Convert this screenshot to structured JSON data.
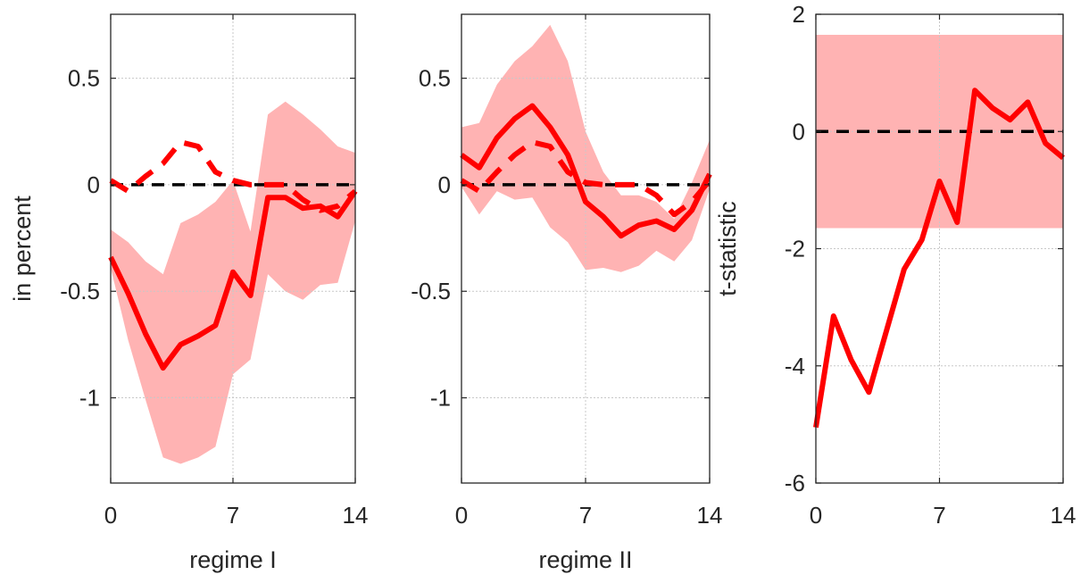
{
  "chart_data": [
    {
      "type": "line",
      "xlabel": "regime I",
      "ylabel": "in percent",
      "xlim": [
        0,
        14
      ],
      "ylim": [
        -1.4,
        0.8
      ],
      "xticks": [
        0,
        7,
        14
      ],
      "xtick_labels": [
        "0",
        "7",
        "14"
      ],
      "yticks": [
        0.5,
        0,
        -0.5,
        -1
      ],
      "ytick_labels": [
        "0.5",
        "0",
        "-0.5",
        "-1"
      ],
      "grid": true,
      "zero_line": 0,
      "colors": {
        "series": "#ff0000",
        "band": "#ffb3b3",
        "zero_line": "#000000"
      },
      "x": [
        0,
        1,
        2,
        3,
        4,
        5,
        6,
        7,
        8,
        9,
        10,
        11,
        12,
        13,
        14
      ],
      "band": {
        "upper": [
          -0.21,
          -0.27,
          -0.36,
          -0.42,
          -0.18,
          -0.14,
          -0.08,
          0.02,
          -0.22,
          0.33,
          0.39,
          0.33,
          0.26,
          0.18,
          0.15
        ],
        "lower": [
          -0.39,
          -0.73,
          -1.01,
          -1.28,
          -1.31,
          -1.28,
          -1.23,
          -0.89,
          -0.82,
          -0.42,
          -0.5,
          -0.54,
          -0.47,
          -0.46,
          -0.17
        ]
      },
      "series": [
        {
          "style": "solid",
          "values": [
            -0.34,
            -0.51,
            -0.7,
            -0.86,
            -0.75,
            -0.71,
            -0.66,
            -0.41,
            -0.52,
            -0.06,
            -0.06,
            -0.11,
            -0.1,
            -0.15,
            -0.03
          ]
        },
        {
          "style": "dashed",
          "values": [
            0.02,
            -0.03,
            0.04,
            0.1,
            0.2,
            0.18,
            0.06,
            0.02,
            0.0,
            0.0,
            0.0,
            -0.07,
            -0.12,
            -0.1,
            -0.03
          ]
        }
      ]
    },
    {
      "type": "line",
      "xlabel": "regime II",
      "ylabel": "",
      "xlim": [
        0,
        14
      ],
      "ylim": [
        -1.4,
        0.8
      ],
      "xticks": [
        0,
        7,
        14
      ],
      "xtick_labels": [
        "0",
        "7",
        "14"
      ],
      "yticks": [
        0.5,
        0,
        -0.5,
        -1
      ],
      "ytick_labels": [
        "0.5",
        "0",
        "-0.5",
        "-1"
      ],
      "grid": true,
      "zero_line": 0,
      "colors": {
        "series": "#ff0000",
        "band": "#ffb3b3",
        "zero_line": "#000000"
      },
      "x": [
        0,
        1,
        2,
        3,
        4,
        5,
        6,
        7,
        8,
        9,
        10,
        11,
        12,
        13,
        14
      ],
      "band": {
        "upper": [
          0.27,
          0.29,
          0.47,
          0.58,
          0.65,
          0.75,
          0.58,
          0.25,
          0.06,
          -0.05,
          -0.05,
          -0.08,
          -0.16,
          0.01,
          0.21
        ],
        "lower": [
          -0.01,
          -0.14,
          -0.03,
          -0.07,
          -0.06,
          -0.2,
          -0.27,
          -0.4,
          -0.39,
          -0.41,
          -0.38,
          -0.31,
          -0.36,
          -0.26,
          -0.02
        ]
      },
      "series": [
        {
          "style": "solid",
          "values": [
            0.14,
            0.08,
            0.22,
            0.31,
            0.37,
            0.27,
            0.14,
            -0.08,
            -0.15,
            -0.24,
            -0.19,
            -0.17,
            -0.21,
            -0.12,
            0.05
          ]
        },
        {
          "style": "dashed",
          "values": [
            0.02,
            -0.03,
            0.06,
            0.14,
            0.2,
            0.18,
            0.06,
            0.01,
            0.0,
            0.0,
            0.0,
            -0.05,
            -0.14,
            -0.08,
            0.02
          ]
        }
      ]
    },
    {
      "type": "line",
      "xlabel": "",
      "ylabel": "t-statistic",
      "xlim": [
        0,
        14
      ],
      "ylim": [
        -6,
        2
      ],
      "xticks": [
        0,
        7,
        14
      ],
      "xtick_labels": [
        "0",
        "7",
        "14"
      ],
      "yticks": [
        2,
        0,
        -2,
        -4,
        -6
      ],
      "ytick_labels": [
        "2",
        "0",
        "-2",
        "-4",
        "-6"
      ],
      "grid": true,
      "zero_line": 0,
      "colors": {
        "series": "#ff0000",
        "band": "#ffb3b3",
        "zero_line": "#000000"
      },
      "x": [
        0,
        1,
        2,
        3,
        4,
        5,
        6,
        7,
        8,
        9,
        10,
        11,
        12,
        13,
        14
      ],
      "band": {
        "upper": 1.65,
        "lower": -1.65
      },
      "series": [
        {
          "style": "solid",
          "values": [
            -5.05,
            -3.15,
            -3.9,
            -4.45,
            -3.4,
            -2.35,
            -1.85,
            -0.85,
            -1.55,
            0.7,
            0.4,
            0.2,
            0.5,
            -0.2,
            -0.45
          ]
        }
      ]
    }
  ]
}
